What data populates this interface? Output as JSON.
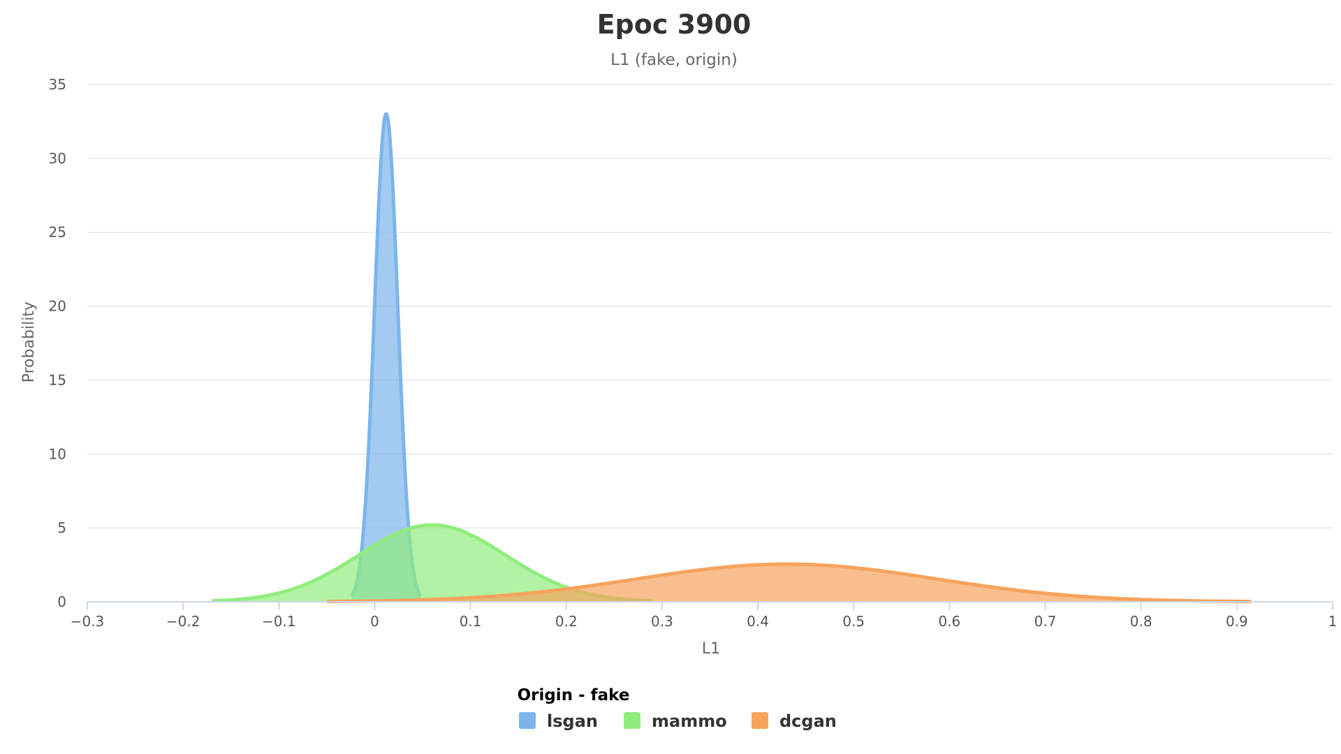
{
  "chart_data": {
    "type": "area",
    "title": "Epoc 3900",
    "subtitle": "L1 (fake, origin)",
    "xlabel": "L1",
    "ylabel": "Probability",
    "xlim": [
      -0.3,
      1
    ],
    "ylim": [
      0,
      35
    ],
    "x_ticks": [
      "−0.3",
      "−0.2",
      "−0.1",
      "0",
      "0.1",
      "0.2",
      "0.3",
      "0.4",
      "0.5",
      "0.6",
      "0.7",
      "0.8",
      "0.9",
      "1"
    ],
    "y_ticks": [
      "0",
      "5",
      "10",
      "15",
      "20",
      "25",
      "30",
      "35"
    ],
    "grid": true,
    "legend": {
      "title": "Origin - fake",
      "position": "bottom-center"
    },
    "series": [
      {
        "name": "lsgan",
        "color": "#7cb5ec",
        "mean": 0.012,
        "peak": 33.0,
        "x_range": [
          -0.024,
          0.048
        ]
      },
      {
        "name": "mammo",
        "color": "#90ed7d",
        "mean": 0.06,
        "peak": 5.2,
        "x_range": [
          -0.17,
          0.29
        ]
      },
      {
        "name": "dcgan",
        "color": "#f7a35c",
        "mean": 0.43,
        "peak": 2.55,
        "x_range": [
          -0.05,
          0.915
        ]
      }
    ]
  }
}
